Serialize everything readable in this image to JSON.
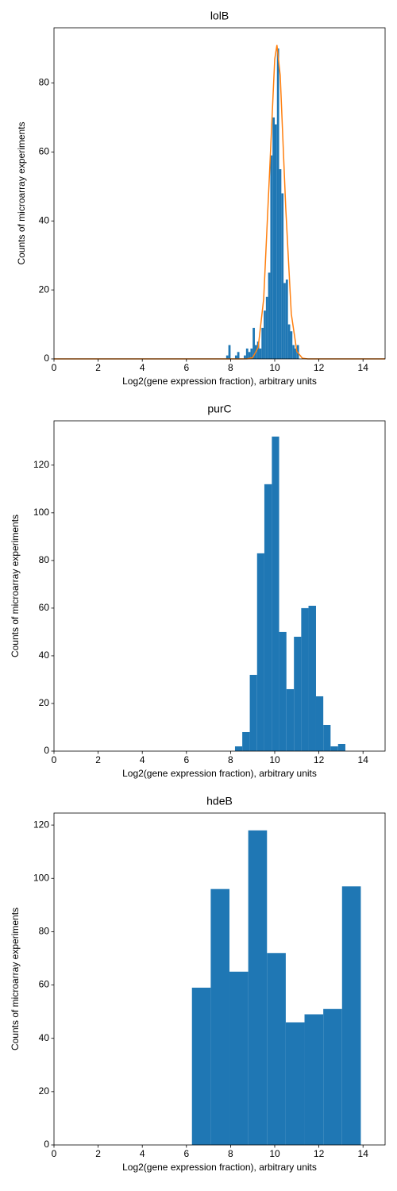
{
  "chart_data": [
    {
      "type": "histogram",
      "title": "lolB",
      "xlabel": "Log2(gene expression fraction), arbitrary units",
      "ylabel": "Counts of microarray experiments",
      "bins": [
        7.8,
        7.9,
        8.0,
        8.1,
        8.2,
        8.3,
        8.4,
        8.5,
        8.6,
        8.7,
        8.8,
        8.9,
        9.0,
        9.1,
        9.2,
        9.3,
        9.4,
        9.5,
        9.6,
        9.7,
        9.8,
        9.9,
        10.0,
        10.1,
        10.2,
        10.3,
        10.4,
        10.5,
        10.6,
        10.7,
        10.8,
        10.9,
        11.0,
        11.1
      ],
      "counts": [
        1,
        4,
        0,
        0,
        1,
        2,
        0,
        0,
        1,
        3,
        2,
        3,
        9,
        4,
        5,
        3,
        9,
        14,
        18,
        25,
        59,
        70,
        68,
        90,
        55,
        48,
        22,
        23,
        10,
        8,
        4,
        3,
        4
      ],
      "color": "#1f77b4",
      "line": {
        "x": [
          0,
          8.5,
          8.75,
          9,
          9.25,
          9.5,
          9.75,
          10,
          10.1,
          10.25,
          10.5,
          10.75,
          11,
          11.25,
          11.5,
          15
        ],
        "values": [
          0,
          0,
          0.02,
          0.35,
          3.3,
          17.4,
          51.8,
          86.9,
          91,
          82.1,
          43.6,
          13.1,
          2.2,
          0.2,
          0,
          0
        ],
        "color": "#ff7f0e"
      },
      "xlim": [
        0,
        15
      ],
      "xticks": [
        0,
        2,
        4,
        6,
        8,
        10,
        12,
        14
      ],
      "ylim": [
        0,
        96
      ],
      "yticks": [
        0,
        20,
        40,
        60,
        80
      ]
    },
    {
      "type": "histogram",
      "title": "purC",
      "xlabel": "Log2(gene expression fraction), arbitrary units",
      "ylabel": "Counts of microarray experiments",
      "bins": [
        8.2,
        8.53,
        8.87,
        9.2,
        9.53,
        9.87,
        10.2,
        10.53,
        10.87,
        11.2,
        11.53,
        11.87,
        12.2,
        12.53,
        12.87,
        13.2
      ],
      "counts": [
        2,
        8,
        32,
        83,
        112,
        132,
        50,
        26,
        48,
        60,
        61,
        23,
        11,
        2,
        3
      ],
      "color": "#1f77b4",
      "xlim": [
        0,
        15
      ],
      "xticks": [
        0,
        2,
        4,
        6,
        8,
        10,
        12,
        14
      ],
      "ylim": [
        0,
        138.6
      ],
      "yticks": [
        0,
        20,
        40,
        60,
        80,
        100,
        120
      ]
    },
    {
      "type": "histogram",
      "title": "hdeB",
      "xlabel": "Log2(gene expression fraction), arbitrary units",
      "ylabel": "Counts of microarray experiments",
      "bins": [
        6.25,
        7.1,
        7.95,
        8.8,
        9.65,
        10.5,
        11.35,
        12.2,
        13.05,
        13.9
      ],
      "counts": [
        59,
        96,
        65,
        118,
        72,
        46,
        49,
        51,
        97
      ],
      "color": "#1f77b4",
      "xlim": [
        0,
        15
      ],
      "xticks": [
        0,
        2,
        4,
        6,
        8,
        10,
        12,
        14
      ],
      "ylim": [
        0,
        124.5
      ],
      "yticks": [
        0,
        20,
        40,
        60,
        80,
        100,
        120
      ]
    }
  ]
}
